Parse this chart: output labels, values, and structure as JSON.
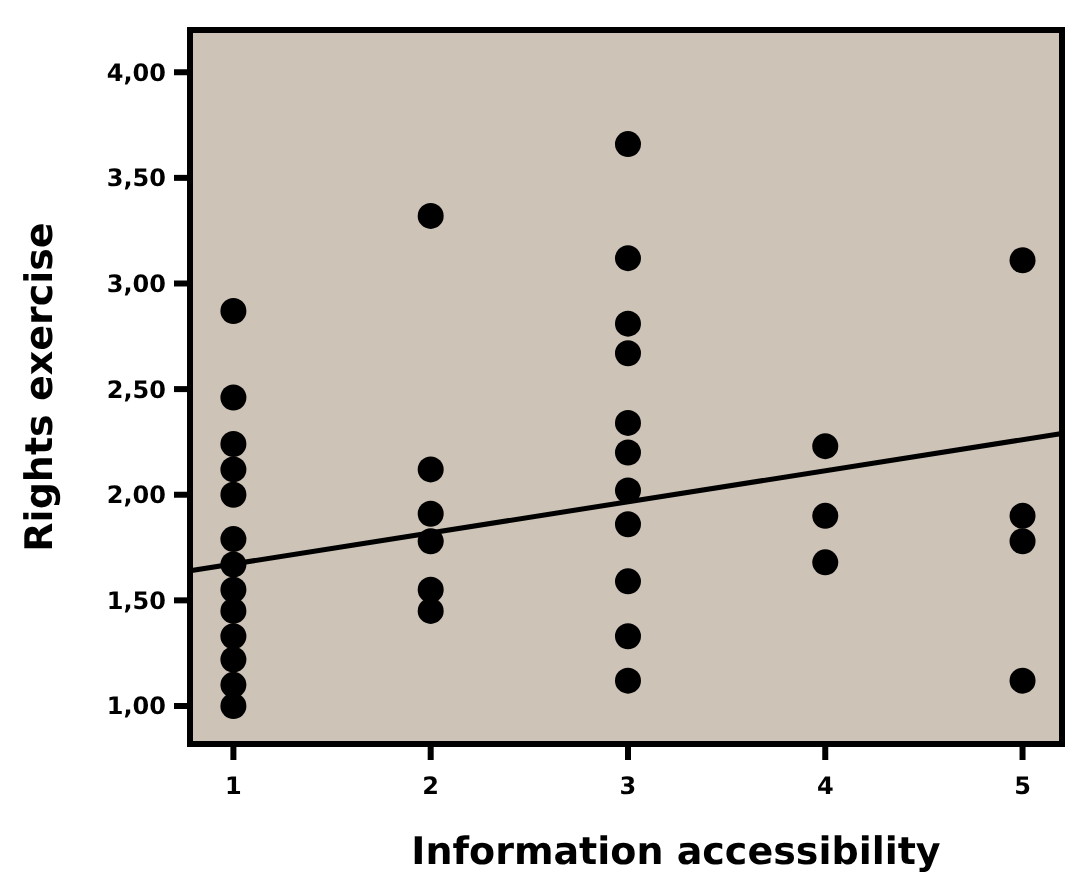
{
  "chart_data": {
    "type": "scatter",
    "xlabel": "Information accessibility",
    "ylabel": "Rights exercise",
    "xlim": [
      0.78,
      5.2
    ],
    "xticks": [
      1,
      2,
      3,
      4,
      5
    ],
    "ylim": [
      0.82,
      4.2
    ],
    "yticks": [
      {
        "value": 1,
        "label": "1,00"
      },
      {
        "value": 1.5,
        "label": "1,50"
      },
      {
        "value": 2,
        "label": "2,00"
      },
      {
        "value": 2.5,
        "label": "2,50"
      },
      {
        "value": 3,
        "label": "3,00"
      },
      {
        "value": 3.5,
        "label": "3,50"
      },
      {
        "value": 4,
        "label": "4,00"
      }
    ],
    "grid": false,
    "series": [
      {
        "color": "#000000",
        "marker": "circle",
        "x": [
          1,
          1,
          1,
          1,
          1,
          1,
          1,
          1,
          1,
          1,
          1,
          1,
          1,
          2,
          2,
          2,
          2,
          2,
          2,
          3,
          3,
          3,
          3,
          3,
          3,
          3,
          3,
          3,
          3,
          3,
          4,
          4,
          4,
          5,
          5,
          5,
          5
        ],
        "values": [
          2.87,
          2.46,
          2.24,
          2.12,
          2.0,
          1.79,
          1.67,
          1.55,
          1.45,
          1.33,
          1.22,
          1.1,
          1.0,
          3.32,
          2.12,
          1.91,
          1.78,
          1.55,
          1.45,
          3.66,
          3.12,
          2.81,
          2.67,
          2.34,
          2.2,
          2.02,
          1.86,
          1.59,
          1.33,
          1.12,
          2.23,
          1.9,
          1.68,
          3.11,
          1.9,
          1.78,
          1.12
        ]
      },
      {
        "type": "line",
        "color": "#000000",
        "marker": "none",
        "line_style": "solid",
        "x": [
          0.78,
          5.2
        ],
        "values": [
          1.64,
          2.29
        ]
      }
    ]
  }
}
